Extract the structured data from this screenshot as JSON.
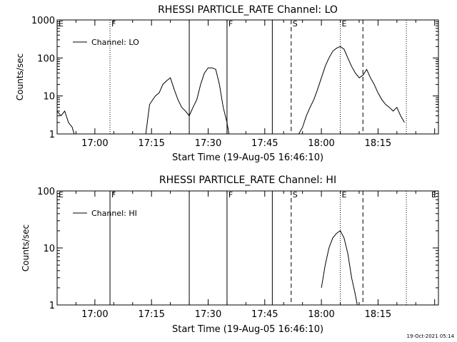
{
  "footer_timestamp": "19-Oct-2021 05:14",
  "chart_data": [
    {
      "type": "line",
      "title": "RHESSI PARTICLE_RATE Channel: LO",
      "xlabel": "Start Time (19-Aug-05 16:46:10)",
      "ylabel": "Counts/sec",
      "yscale": "log",
      "ylim": [
        1,
        1000
      ],
      "yticks": [
        1,
        10,
        100,
        1000
      ],
      "ytick_labels": [
        "1",
        "10",
        "100",
        "1000"
      ],
      "xlim": [
        "16:50",
        "18:31"
      ],
      "xticks": [
        "17:00",
        "17:15",
        "17:30",
        "17:45",
        "18:00",
        "18:15"
      ],
      "legend": {
        "label": "Channel: LO",
        "position": "top-left"
      },
      "markers": [
        {
          "time": "17:04",
          "style": "dotted",
          "label": "F"
        },
        {
          "time": "17:25",
          "style": "solid",
          "label": ""
        },
        {
          "time": "17:35",
          "style": "solid",
          "label": "F"
        },
        {
          "time": "17:47",
          "style": "solid",
          "label": ""
        },
        {
          "time": "17:52",
          "style": "dashed",
          "label": "S"
        },
        {
          "time": "18:05",
          "style": "dotted",
          "label": "E"
        },
        {
          "time": "18:11",
          "style": "dashed",
          "label": ""
        },
        {
          "time": "18:22.5",
          "style": "dotted",
          "label": ""
        }
      ],
      "edge_labels": [
        "E"
      ],
      "series": [
        {
          "name": "Channel: LO",
          "segments": [
            [
              [
                "16:50",
                4
              ],
              [
                "16:51",
                3
              ],
              [
                "16:52",
                4
              ],
              [
                "16:53",
                2
              ],
              [
                "16:54",
                1.5
              ],
              [
                "16:54.5",
                1
              ]
            ],
            [
              [
                "17:13.5",
                1
              ],
              [
                "17:14.5",
                6
              ],
              [
                "17:16",
                10
              ],
              [
                "17:17",
                12
              ],
              [
                "17:18",
                20
              ],
              [
                "17:19",
                25
              ],
              [
                "17:20",
                30
              ],
              [
                "17:21",
                15
              ],
              [
                "17:22",
                8
              ],
              [
                "17:23",
                5
              ],
              [
                "17:24",
                4
              ],
              [
                "17:25",
                3
              ],
              [
                "17:26",
                5
              ],
              [
                "17:27",
                8
              ],
              [
                "17:28",
                20
              ],
              [
                "17:29",
                40
              ],
              [
                "17:30",
                55
              ],
              [
                "17:31",
                55
              ],
              [
                "17:32",
                50
              ],
              [
                "17:33",
                20
              ],
              [
                "17:34",
                5
              ],
              [
                "17:35",
                2
              ],
              [
                "17:35.5",
                1
              ]
            ],
            [
              [
                "17:54",
                1
              ],
              [
                "17:55",
                1.5
              ],
              [
                "17:56",
                3
              ],
              [
                "17:57",
                5
              ],
              [
                "17:58",
                8
              ],
              [
                "17:59",
                15
              ],
              [
                "18:00",
                30
              ],
              [
                "18:01",
                60
              ],
              [
                "18:02",
                100
              ],
              [
                "18:03",
                150
              ],
              [
                "18:04",
                180
              ],
              [
                "18:05",
                200
              ],
              [
                "18:06",
                170
              ],
              [
                "18:07",
                100
              ],
              [
                "18:08",
                60
              ],
              [
                "18:09",
                40
              ],
              [
                "18:10",
                30
              ],
              [
                "18:11",
                35
              ],
              [
                "18:12",
                50
              ],
              [
                "18:13",
                30
              ],
              [
                "18:14",
                20
              ],
              [
                "18:15",
                12
              ],
              [
                "18:16",
                8
              ],
              [
                "18:17",
                6
              ],
              [
                "18:18",
                5
              ],
              [
                "18:19",
                4
              ],
              [
                "18:20",
                5
              ],
              [
                "18:21",
                3
              ],
              [
                "18:22",
                2
              ]
            ]
          ]
        }
      ]
    },
    {
      "type": "line",
      "title": "RHESSI PARTICLE_RATE Channel: HI",
      "xlabel": "Start Time (19-Aug-05 16:46:10)",
      "ylabel": "Counts/sec",
      "yscale": "log",
      "ylim": [
        1,
        100
      ],
      "yticks": [
        1,
        10,
        100
      ],
      "ytick_labels": [
        "1",
        "10",
        "100"
      ],
      "xlim": [
        "16:50",
        "18:31"
      ],
      "xticks": [
        "17:00",
        "17:15",
        "17:30",
        "17:45",
        "18:00",
        "18:15"
      ],
      "legend": {
        "label": "Channel: HI",
        "position": "top-left"
      },
      "markers": [
        {
          "time": "17:04",
          "style": "solid",
          "label": "F"
        },
        {
          "time": "17:25",
          "style": "solid",
          "label": ""
        },
        {
          "time": "17:35",
          "style": "solid",
          "label": "F"
        },
        {
          "time": "17:47",
          "style": "solid",
          "label": ""
        },
        {
          "time": "17:52",
          "style": "dashed",
          "label": "S"
        },
        {
          "time": "18:05",
          "style": "dotted",
          "label": "E"
        },
        {
          "time": "18:11",
          "style": "dashed",
          "label": ""
        },
        {
          "time": "18:22.5",
          "style": "dotted",
          "label": ""
        }
      ],
      "edge_labels": [
        "E",
        "E"
      ],
      "series": [
        {
          "name": "Channel: HI",
          "segments": [
            [
              [
                "18:00",
                2
              ],
              [
                "18:01",
                5
              ],
              [
                "18:02",
                10
              ],
              [
                "18:03",
                15
              ],
              [
                "18:04",
                18
              ],
              [
                "18:05",
                20
              ],
              [
                "18:06",
                15
              ],
              [
                "18:07",
                8
              ],
              [
                "18:08",
                3
              ],
              [
                "18:09",
                1.5
              ],
              [
                "18:09.5",
                1
              ]
            ]
          ]
        }
      ]
    }
  ]
}
